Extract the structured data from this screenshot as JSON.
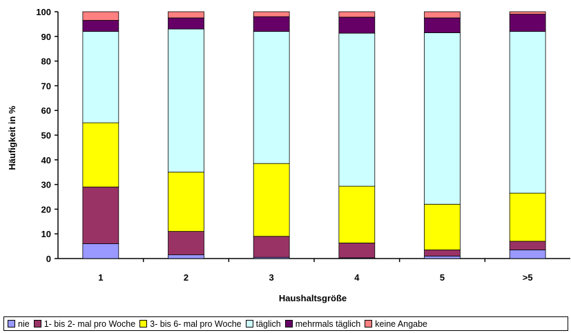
{
  "chart_data": {
    "type": "bar",
    "stacked": true,
    "title": "",
    "xlabel": "Haushaltsgröße",
    "ylabel": "Häufigkeit in %",
    "ylim": [
      0,
      100
    ],
    "yticks": [
      "0",
      "10",
      "20",
      "30",
      "40",
      "50",
      "60",
      "70",
      "80",
      "90",
      "100"
    ],
    "categories": [
      "1",
      "2",
      "3",
      "4",
      "5",
      ">5"
    ],
    "grid": false,
    "legend_position": "bottom",
    "series": [
      {
        "name": "nie",
        "color": "#9999ff",
        "values": [
          6,
          1.5,
          0.5,
          0.3,
          1,
          3.5
        ]
      },
      {
        "name": "1- bis 2- mal pro Woche",
        "color": "#993366",
        "values": [
          23,
          9.5,
          8.5,
          6,
          2.5,
          3.5
        ]
      },
      {
        "name": "3- bis 6- mal pro Woche",
        "color": "#ffff00",
        "values": [
          26,
          24,
          29.5,
          23,
          18.5,
          19.5
        ]
      },
      {
        "name": "täglich",
        "color": "#ccffff",
        "values": [
          37,
          58,
          53.5,
          62,
          69.5,
          65.5
        ]
      },
      {
        "name": "mehrmals täglich",
        "color": "#660066",
        "values": [
          4.5,
          4.5,
          6,
          6.5,
          6,
          7
        ]
      },
      {
        "name": "keine Angabe",
        "color": "#ff8080",
        "values": [
          3.5,
          2.5,
          2,
          2.2,
          2.5,
          1
        ]
      }
    ]
  }
}
